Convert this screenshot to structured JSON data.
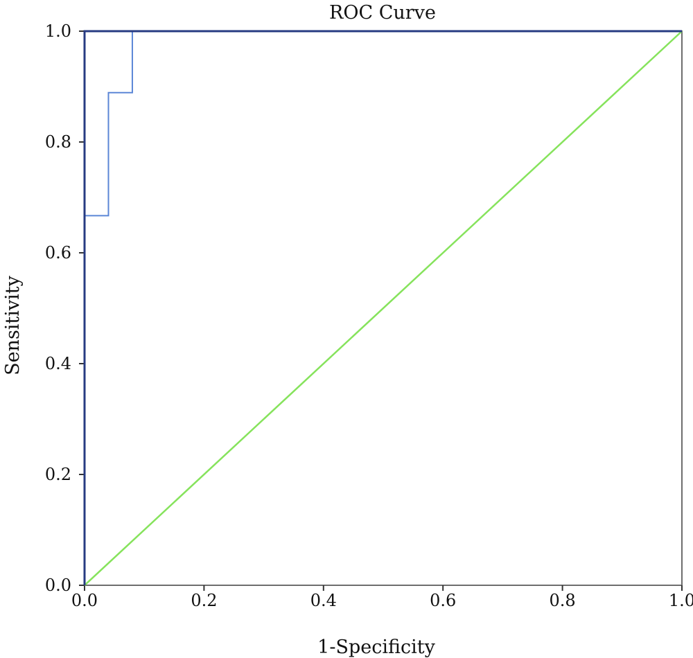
{
  "chart_data": {
    "type": "line",
    "title": "ROC Curve",
    "xlabel": "1-Specificity",
    "ylabel": "Sensitivity",
    "xlim": [
      0,
      1
    ],
    "ylim": [
      0,
      1
    ],
    "grid": false,
    "x_ticks": [
      "0.0",
      "0.2",
      "0.4",
      "0.6",
      "0.8",
      "1.0"
    ],
    "y_ticks": [
      "0.0",
      "0.2",
      "0.4",
      "0.6",
      "0.8",
      "1.0"
    ],
    "series": [
      {
        "key": "roc",
        "color": "#5b86d6",
        "points": [
          [
            0.0,
            0.0
          ],
          [
            0.0,
            0.667
          ],
          [
            0.04,
            0.667
          ],
          [
            0.04,
            0.889
          ],
          [
            0.08,
            0.889
          ],
          [
            0.08,
            1.0
          ],
          [
            1.0,
            1.0
          ]
        ]
      },
      {
        "key": "reference",
        "color": "#86e35c",
        "points": [
          [
            0.0,
            0.0
          ],
          [
            1.0,
            1.0
          ]
        ]
      }
    ]
  }
}
